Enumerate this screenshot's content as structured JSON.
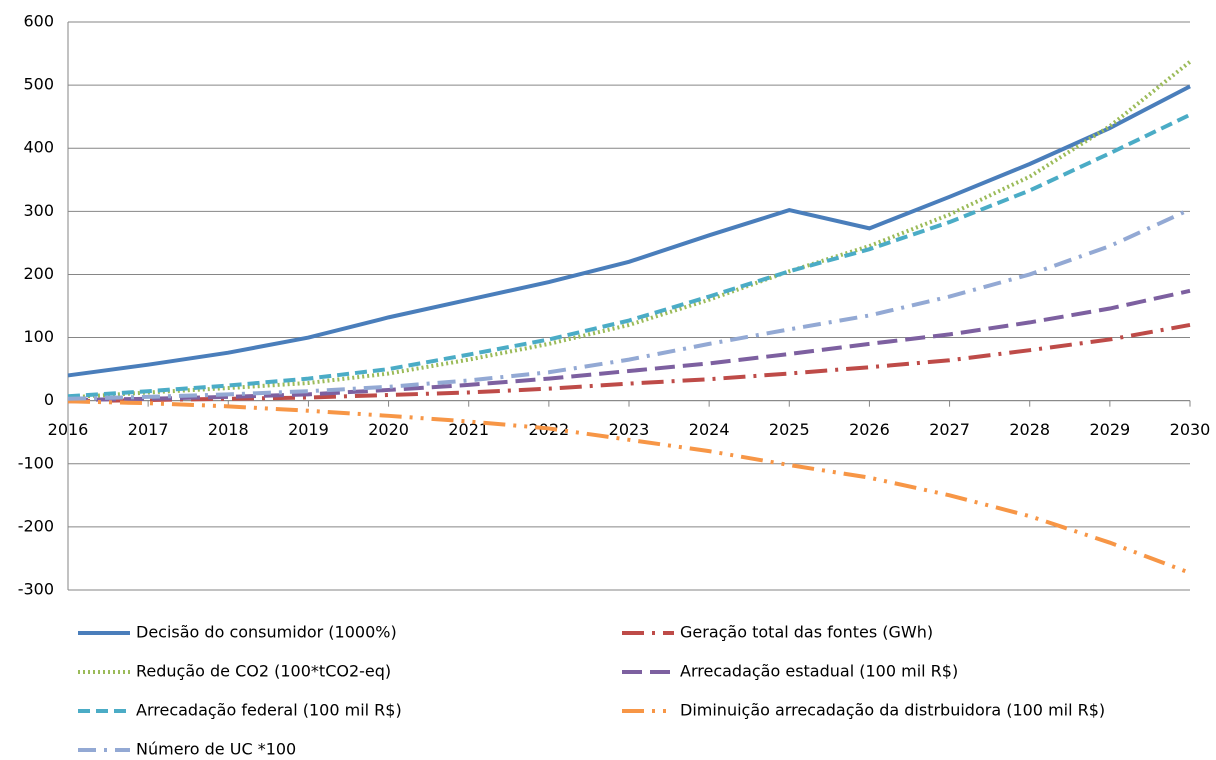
{
  "chart_data": {
    "type": "line",
    "categories": [
      "2016",
      "2017",
      "2018",
      "2019",
      "2020",
      "2021",
      "2022",
      "2023",
      "2024",
      "2025",
      "2026",
      "2027",
      "2028",
      "2029",
      "2030"
    ],
    "ylim": [
      -300,
      600
    ],
    "yticks": [
      -300,
      -200,
      -100,
      0,
      100,
      200,
      300,
      400,
      500,
      600
    ],
    "grid": true,
    "series": [
      {
        "name": "Decisão do consumidor (1000%)",
        "color": "#4a7ebb",
        "dash": "solid",
        "values": [
          40,
          57,
          76,
          100,
          132,
          160,
          188,
          220,
          262,
          302,
          273,
          323,
          375,
          432,
          498
        ]
      },
      {
        "name": "Geração total das fontes (GWh)",
        "color": "#be4b48",
        "dash": "longdashdot",
        "values": [
          -1,
          1,
          3,
          5,
          9,
          13,
          19,
          27,
          34,
          43,
          53,
          64,
          80,
          97,
          120
        ]
      },
      {
        "name": "Redução de CO2 (100*tCO2-eq)",
        "color": "#9bbb59",
        "dash": "dotted",
        "values": [
          5,
          13,
          20,
          28,
          43,
          65,
          90,
          120,
          160,
          205,
          245,
          295,
          355,
          435,
          537
        ]
      },
      {
        "name": "Arrecadação estadual (100 mil R$)",
        "color": "#7d60a0",
        "dash": "longdash",
        "values": [
          1,
          3,
          6,
          10,
          17,
          25,
          35,
          47,
          59,
          74,
          90,
          105,
          124,
          146,
          174
        ]
      },
      {
        "name": "Arrecadação federal (100 mil R$)",
        "color": "#4bacc6",
        "dash": "dashed",
        "values": [
          7,
          15,
          24,
          35,
          50,
          73,
          97,
          127,
          165,
          205,
          240,
          283,
          333,
          392,
          453
        ]
      },
      {
        "name": "Diminuição arrecadação da distrbuidora (100 mil R$)",
        "color": "#f79646",
        "dash": "longdashdotdot",
        "values": [
          -1,
          -4,
          -9,
          -16,
          -24,
          -33,
          -44,
          -62,
          -80,
          -102,
          -122,
          -150,
          -183,
          -225,
          -273
        ]
      },
      {
        "name": "Número de UC *100",
        "color": "#93a9d4",
        "dash": "dashdot",
        "values": [
          3,
          6,
          10,
          15,
          22,
          32,
          45,
          65,
          90,
          113,
          135,
          165,
          200,
          245,
          303
        ]
      }
    ]
  }
}
